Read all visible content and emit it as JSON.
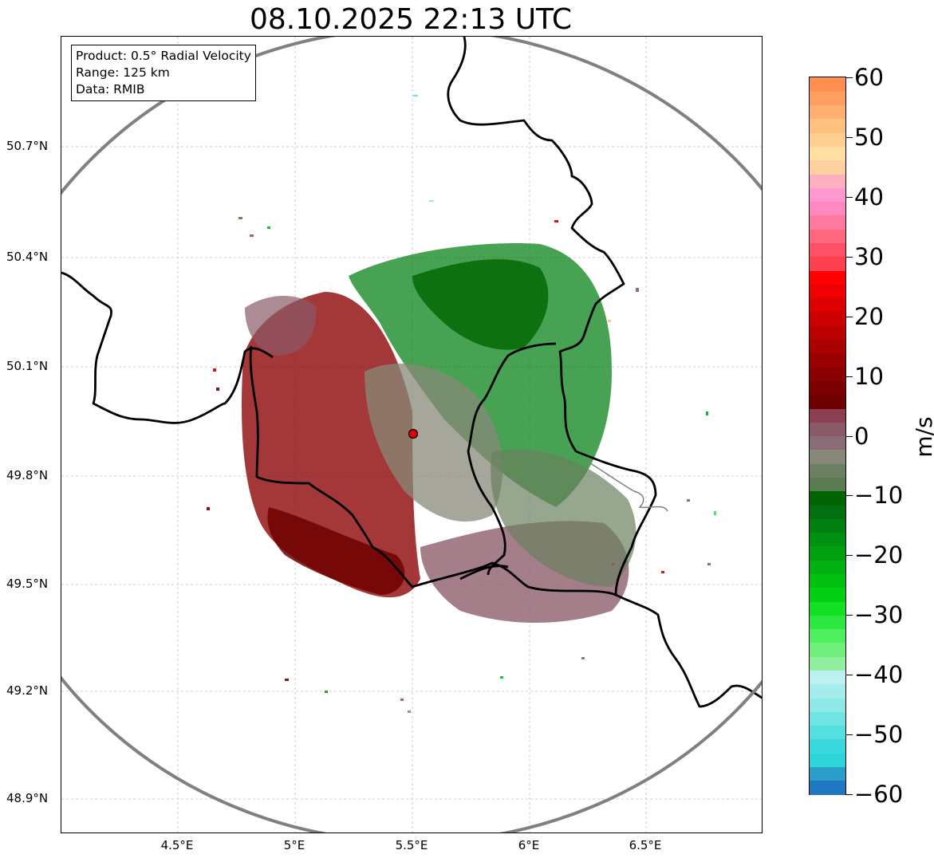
{
  "title": "08.10.2025 22:13 UTC",
  "info": {
    "product": "Product: 0.5° Radial Velocity",
    "range": "Range: 125 km",
    "data": "Data: RMIB"
  },
  "axes": {
    "lat_labels": [
      "50.7°N",
      "50.4°N",
      "50.1°N",
      "49.8°N",
      "49.5°N",
      "49.2°N",
      "48.9°N"
    ],
    "lon_labels": [
      "4.5°E",
      "5°E",
      "5.5°E",
      "6°E",
      "6.5°E"
    ]
  },
  "colorbar": {
    "unit": "m/s",
    "ticks": [
      "60",
      "50",
      "40",
      "30",
      "20",
      "10",
      "0",
      "−10",
      "−20",
      "−30",
      "−40",
      "−50",
      "−60"
    ],
    "min": -60,
    "max": 60,
    "colors": [
      "#1f78c1",
      "#2a9ec9",
      "#2dd4d8",
      "#3ad9dd",
      "#55e0e0",
      "#70e3e3",
      "#8ee8e8",
      "#a6ecec",
      "#bdf0f0",
      "#90f0a0",
      "#6ef07a",
      "#4ef060",
      "#2de83e",
      "#14e024",
      "#00d010",
      "#00c010",
      "#00b010",
      "#00a010",
      "#009010",
      "#008010",
      "#007010",
      "#006400",
      "#5a7c50",
      "#6a8060",
      "#888878",
      "#8a6c78",
      "#8a5a68",
      "#8a4050",
      "#700000",
      "#7d0000",
      "#8a0000",
      "#9a0000",
      "#aa0000",
      "#bb0000",
      "#cc0000",
      "#dd0000",
      "#ee0000",
      "#ff0000",
      "#ff4050",
      "#ff5068",
      "#ff6880",
      "#ff78a0",
      "#ff88c0",
      "#ff98d0",
      "#ffb0c0",
      "#ffd0a0",
      "#ffe0a0",
      "#ffd090",
      "#ffc080",
      "#ffb070",
      "#ffa060",
      "#ff9050"
    ]
  },
  "colors": {
    "range_ring": "#808080",
    "borders": "#000000",
    "radar_site": "#e00000"
  }
}
